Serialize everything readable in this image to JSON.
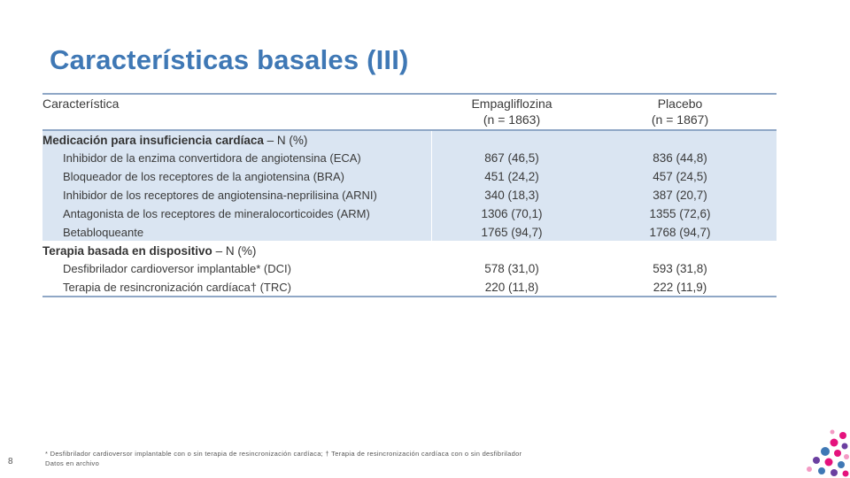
{
  "title": "Características basales (III)",
  "table": {
    "headers": {
      "label": "Característica",
      "empa_line1": "Empagliflozina",
      "empa_line2": "(n = 1863)",
      "placebo_line1": "Placebo",
      "placebo_line2": "(n = 1867)"
    },
    "section1": {
      "title": "Medicación para insuficiencia cardíaca",
      "unit": "– N (%)"
    },
    "rows1": [
      {
        "label": "Inhibidor de la enzima convertidora de angiotensina (ECA)",
        "empa": "867 (46,5)",
        "placebo": "836 (44,8)"
      },
      {
        "label": "Bloqueador de los receptores de la angiotensina (BRA)",
        "empa": "451 (24,2)",
        "placebo": "457 (24,5)"
      },
      {
        "label": "Inhibidor de los receptores de angiotensina-neprilisina (ARNI)",
        "empa": "340 (18,3)",
        "placebo": "387 (20,7)"
      },
      {
        "label": "Antagonista de los receptores de mineralocorticoides (ARM)",
        "empa": "1306 (70,1)",
        "placebo": "1355 (72,6)"
      },
      {
        "label": "Betabloqueante",
        "empa": "1765 (94,7)",
        "placebo": "1768 (94,7)"
      }
    ],
    "section2": {
      "title": "Terapia basada en dispositivo",
      "unit": "– N (%)"
    },
    "rows2": [
      {
        "label": "Desfibrilador cardioversor implantable* (DCI)",
        "empa": "578 (31,0)",
        "placebo": "593 (31,8)"
      },
      {
        "label": "Terapia de resincronización cardíaca† (TRC)",
        "empa": "220 (11,8)",
        "placebo": "222 (11,9)"
      }
    ]
  },
  "footnote_line1": "* Desfibrilador cardioversor implantable con o sin terapia de resincronización cardíaca; † Terapia de resincronización cardíaca con o sin desfibrilador",
  "footnote_line2": "Datos en archivo",
  "page_number": "8",
  "colors": {
    "title": "#3f78b5",
    "shade": "#dae5f2",
    "rule": "#8fa7c6"
  }
}
